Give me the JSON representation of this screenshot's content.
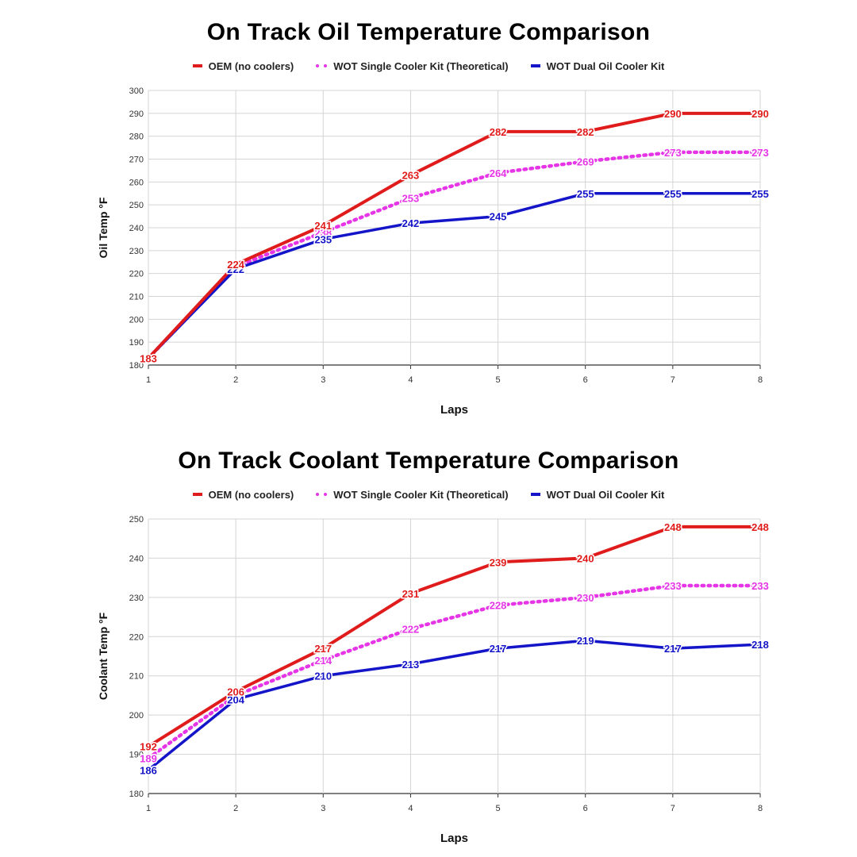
{
  "chart_data": [
    {
      "type": "line",
      "title": "On Track Oil Temperature Comparison",
      "xlabel": "Laps",
      "ylabel": "Oil Temp °F",
      "x": [
        1,
        2,
        3,
        4,
        5,
        6,
        7,
        8
      ],
      "xlim": [
        1,
        8
      ],
      "ylim": [
        180,
        300
      ],
      "ytick_step": 10,
      "grid": true,
      "legend_position": "top-center",
      "series": [
        {
          "name": "OEM (no coolers)",
          "color": "#e01b1b",
          "style": "solid",
          "values": [
            183,
            224,
            241,
            263,
            282,
            282,
            290,
            290
          ],
          "labels": [
            "183",
            "224",
            "241",
            "263",
            "282",
            "282",
            "290",
            "290"
          ]
        },
        {
          "name": "WOT Single Cooler Kit (Theoretical)",
          "color": "#e535e6",
          "style": "dotted",
          "values": [
            183,
            223,
            238,
            253,
            264,
            269,
            273,
            273
          ],
          "labels": [
            "183",
            "223",
            "238",
            "253",
            "264",
            "269",
            "273",
            "273"
          ]
        },
        {
          "name": "WOT Dual Oil Cooler Kit",
          "color": "#1414c8",
          "style": "solid",
          "values": [
            183,
            222,
            235,
            242,
            245,
            255,
            255,
            255
          ],
          "labels": [
            "183",
            "222",
            "235",
            "242",
            "245",
            "255",
            "255",
            "255"
          ]
        }
      ]
    },
    {
      "type": "line",
      "title": "On Track Coolant Temperature Comparison",
      "xlabel": "Laps",
      "ylabel": "Coolant Temp °F",
      "x": [
        1,
        2,
        3,
        4,
        5,
        6,
        7,
        8
      ],
      "xlim": [
        1,
        8
      ],
      "ylim": [
        180,
        250
      ],
      "ytick_step": 10,
      "grid": true,
      "legend_position": "top-center",
      "series": [
        {
          "name": "OEM (no coolers)",
          "color": "#e01b1b",
          "style": "solid",
          "values": [
            192,
            206,
            217,
            231,
            239,
            240,
            248,
            248
          ],
          "labels": [
            "192",
            "206",
            "217",
            "231",
            "239",
            "240",
            "248",
            "248"
          ]
        },
        {
          "name": "WOT Single Cooler Kit (Theoretical)",
          "color": "#e535e6",
          "style": "dotted",
          "values": [
            189,
            205,
            214,
            222,
            228,
            230,
            233,
            233
          ],
          "labels": [
            "189",
            "205",
            "214",
            "222",
            "228",
            "230",
            "233",
            "233"
          ]
        },
        {
          "name": "WOT Dual Oil Cooler Kit",
          "color": "#1414c8",
          "style": "solid",
          "values": [
            186,
            204,
            210,
            213,
            217,
            219,
            217,
            218
          ],
          "labels": [
            "186",
            "204",
            "210",
            "213",
            "217",
            "219",
            "217",
            "218"
          ]
        }
      ]
    }
  ]
}
